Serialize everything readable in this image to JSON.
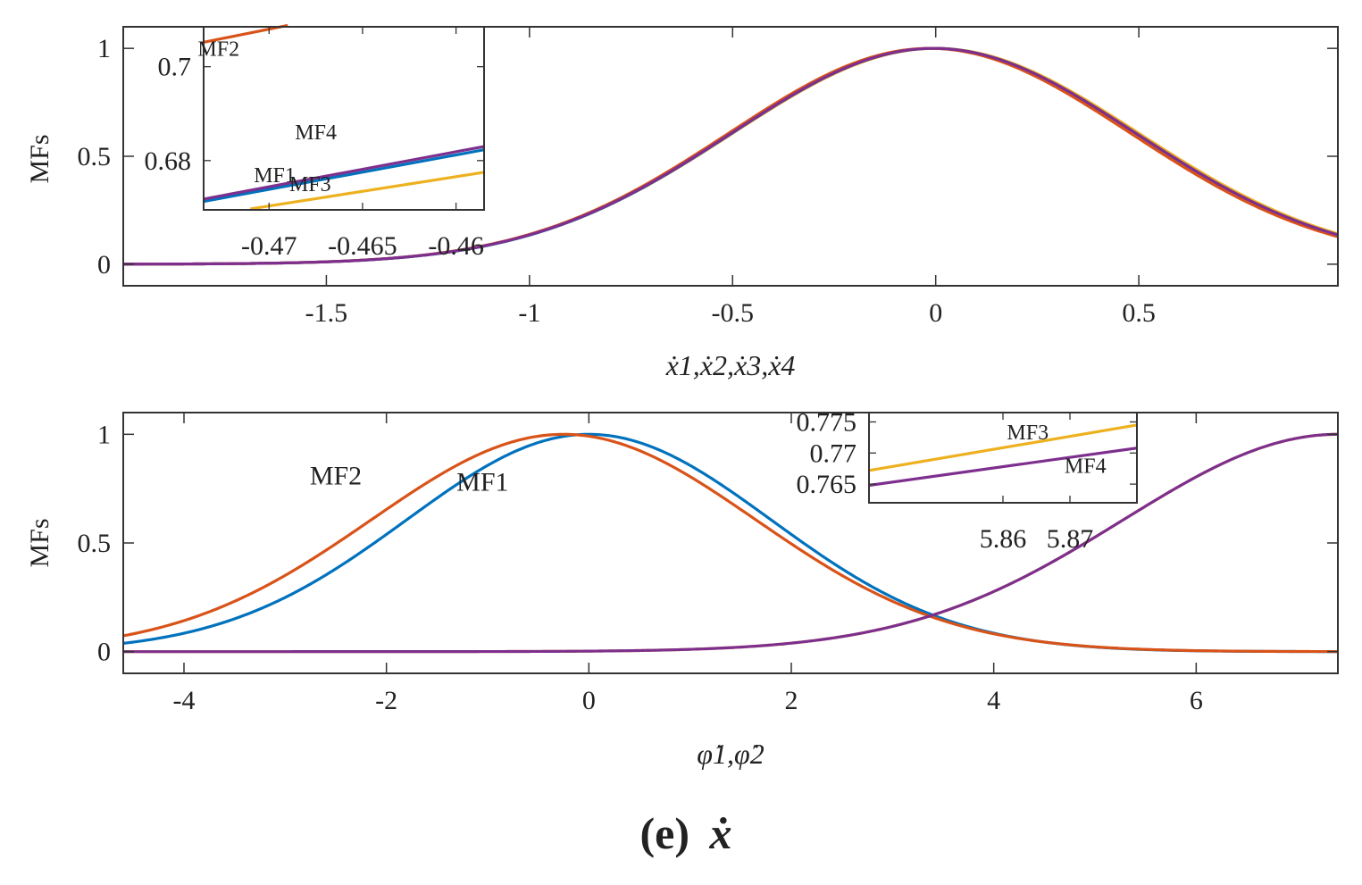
{
  "caption": {
    "letter": "(e)",
    "symbol": "ẋ"
  },
  "colors": {
    "MF1": "#0072BD",
    "MF2": "#D95319",
    "MF3": "#EDB120",
    "MF4": "#7E2F8E",
    "axis": "#333333"
  },
  "chart_data": [
    {
      "type": "line",
      "title": "",
      "xlabel": "ẋ1,ẋ2,ẋ3,ẋ4",
      "ylabel": "MFs",
      "xlim": [
        -2.0,
        0.99
      ],
      "ylim": [
        -0.1,
        1.1
      ],
      "xticks": [
        -1.5,
        -1,
        -0.5,
        0,
        0.5
      ],
      "xtick_labels": [
        "-1.5",
        "-1",
        "-0.5",
        "0",
        "0.5"
      ],
      "yticks": [
        0,
        0.5,
        1
      ],
      "ytick_labels": [
        "0",
        "0.5",
        "1"
      ],
      "series": [
        {
          "name": "MF1",
          "function": "gaussian",
          "center": -0.005,
          "sigma": 0.497
        },
        {
          "name": "MF2",
          "function": "gaussian",
          "center": -0.015,
          "sigma": 0.495
        },
        {
          "name": "MF3",
          "function": "gaussian",
          "center": 0.0,
          "sigma": 0.5
        },
        {
          "name": "MF4",
          "function": "gaussian",
          "center": -0.005,
          "sigma": 0.498
        }
      ],
      "draw_order": [
        "MF3",
        "MF1",
        "MF2",
        "MF4"
      ],
      "inset": {
        "xlim": [
          -0.4735,
          -0.4585
        ],
        "ylim": [
          0.6695,
          0.7085
        ],
        "xticks": [
          -0.47,
          -0.465,
          -0.46
        ],
        "xtick_labels": [
          "-0.47",
          "-0.465",
          "-0.46"
        ],
        "yticks": [
          0.68,
          0.7
        ],
        "ytick_labels": [
          "0.68",
          "0.7"
        ],
        "series": [
          {
            "name": "MF1",
            "x": [
              -0.4735,
              -0.4585
            ],
            "y": [
              0.6713,
              0.6823
            ]
          },
          {
            "name": "MF2",
            "x": [
              -0.4735,
              -0.469
            ],
            "y": [
              0.7052,
              0.7088
            ]
          },
          {
            "name": "MF3",
            "x": [
              -0.471,
              -0.4585
            ],
            "y": [
              0.6697,
              0.6775
            ]
          },
          {
            "name": "MF4",
            "x": [
              -0.4735,
              -0.4585
            ],
            "y": [
              0.6718,
              0.683
            ]
          }
        ],
        "labels": [
          {
            "text": "MF2",
            "x": -0.4727,
            "y": 0.7023
          },
          {
            "text": "MF4",
            "x": -0.4675,
            "y": 0.6845
          },
          {
            "text": "MF1",
            "x": -0.4697,
            "y": 0.6754
          },
          {
            "text": "MF3",
            "x": -0.4678,
            "y": 0.6735
          }
        ]
      }
    },
    {
      "type": "line",
      "title": "",
      "xlabel": "φ̇1,φ̇2",
      "ylabel": "MFs",
      "xlim": [
        -4.6,
        7.4
      ],
      "ylim": [
        -0.1,
        1.1
      ],
      "xticks": [
        -4,
        -2,
        0,
        2,
        4,
        6
      ],
      "xtick_labels": [
        "-4",
        "-2",
        "0",
        "2",
        "4",
        "6"
      ],
      "yticks": [
        0,
        0.5,
        1
      ],
      "ytick_labels": [
        "0",
        "0.5",
        "1"
      ],
      "series": [
        {
          "name": "MF1",
          "function": "gaussian",
          "center": 0.0,
          "sigma": 1.8
        },
        {
          "name": "MF2",
          "function": "gaussian",
          "center": -0.25,
          "sigma": 1.9
        },
        {
          "name": "MF3",
          "function": "gaussian",
          "center": 7.4,
          "sigma": 2.12
        },
        {
          "name": "MF4",
          "function": "gaussian",
          "center": 7.4,
          "sigma": 2.12
        }
      ],
      "draw_order": [
        "MF3",
        "MF1",
        "MF2",
        "MF4"
      ],
      "labels": [
        {
          "text": "MF2",
          "x": -2.5,
          "y": 0.77
        },
        {
          "text": "MF1",
          "x": -1.05,
          "y": 0.74
        }
      ],
      "inset": {
        "xlim": [
          5.84,
          5.88
        ],
        "ylim": [
          0.762,
          0.7765
        ],
        "xticks": [
          5.86,
          5.87
        ],
        "xtick_labels": [
          "5.86",
          "5.87"
        ],
        "yticks": [
          0.765,
          0.77,
          0.775
        ],
        "ytick_labels": [
          "0.765",
          "0.77",
          "0.775"
        ],
        "series": [
          {
            "name": "MF3",
            "x": [
              5.84,
              5.88
            ],
            "y": [
              0.7672,
              0.7745
            ]
          },
          {
            "name": "MF4",
            "x": [
              5.84,
              5.88
            ],
            "y": [
              0.7648,
              0.7708
            ]
          }
        ],
        "labels": [
          {
            "text": "MF3",
            "x": 5.8637,
            "y": 0.7722
          },
          {
            "text": "MF4",
            "x": 5.8723,
            "y": 0.7668
          }
        ]
      }
    }
  ]
}
